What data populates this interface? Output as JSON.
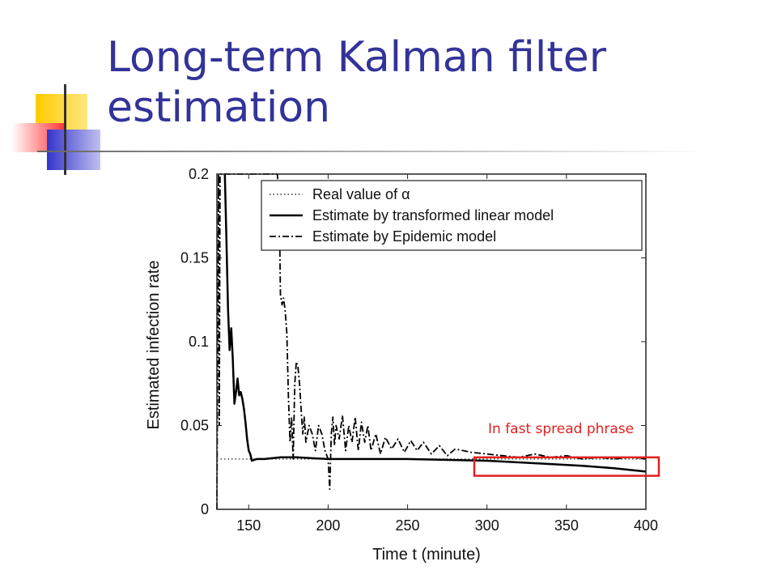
{
  "slide": {
    "title_line1": "Long-term Kalman filter",
    "title_line2": "estimation",
    "annotation": "In fast spread phrase"
  },
  "colors": {
    "title": "#333399",
    "annotation": "#e02020",
    "deco_yellow": "#ffcc00",
    "deco_blue": "#3333cc",
    "deco_red": "#ff3333"
  },
  "chart_data": {
    "type": "line",
    "xlabel": "Time t (minute)",
    "ylabel": "Estimated infection rate",
    "xlim": [
      130,
      400
    ],
    "ylim": [
      0,
      0.2
    ],
    "xticks": [
      150,
      200,
      250,
      300,
      350,
      400
    ],
    "xtick_labels": [
      "150",
      "200",
      "250",
      "300",
      "350",
      "400"
    ],
    "yticks": [
      0,
      0.05,
      0.1,
      0.15,
      0.2
    ],
    "ytick_labels": [
      "0",
      "0.05",
      "0.1",
      "0.15",
      "0.2"
    ],
    "grid": false,
    "legend_position": "top-right",
    "highlight_region": {
      "x": [
        292,
        400
      ],
      "y": [
        0.02,
        0.031
      ]
    },
    "series": [
      {
        "name": "Real value of α",
        "style": "dotted",
        "x": [
          130,
          400
        ],
        "y": [
          0.03,
          0.03
        ]
      },
      {
        "name": "Estimate by transformed linear model",
        "style": "solid",
        "x": [
          135,
          136,
          137,
          138,
          139,
          140,
          141,
          142,
          143,
          144,
          145,
          146,
          147,
          148,
          149,
          150,
          151,
          152,
          155,
          160,
          170,
          180,
          200,
          250,
          300,
          320,
          340,
          360,
          380,
          400
        ],
        "y": [
          0.2,
          0.16,
          0.12,
          0.095,
          0.108,
          0.09,
          0.063,
          0.07,
          0.078,
          0.068,
          0.07,
          0.066,
          0.06,
          0.052,
          0.042,
          0.035,
          0.033,
          0.029,
          0.03,
          0.03,
          0.031,
          0.031,
          0.03,
          0.03,
          0.029,
          0.028,
          0.027,
          0.026,
          0.0245,
          0.0225
        ]
      },
      {
        "name": "Estimate by Epidemic model",
        "style": "dashdot",
        "x": [
          130,
          131,
          131.5,
          132,
          133,
          135,
          140,
          150,
          160,
          165,
          168,
          169,
          169.5,
          170,
          171,
          172,
          173,
          174,
          175,
          176,
          177,
          178,
          179,
          180,
          181,
          182,
          183,
          184,
          185,
          186,
          188,
          190,
          192,
          194,
          196,
          198,
          200,
          201,
          202,
          203,
          204,
          205,
          207,
          209,
          211,
          213,
          215,
          217,
          219,
          221,
          223,
          225,
          227,
          230,
          233,
          236,
          240,
          244,
          248,
          252,
          256,
          260,
          265,
          270,
          275,
          280,
          290,
          300,
          310,
          320,
          330,
          340,
          350,
          360,
          370,
          380,
          390,
          400
        ],
        "y": [
          0.0,
          0.2,
          0.05,
          0.2,
          0.2,
          0.2,
          0.2,
          0.2,
          0.2,
          0.2,
          0.2,
          0.19,
          0.165,
          0.128,
          0.122,
          0.126,
          0.118,
          0.105,
          0.068,
          0.04,
          0.055,
          0.03,
          0.075,
          0.088,
          0.085,
          0.075,
          0.06,
          0.045,
          0.055,
          0.04,
          0.05,
          0.045,
          0.035,
          0.05,
          0.045,
          0.035,
          0.03,
          0.012,
          0.045,
          0.055,
          0.038,
          0.05,
          0.042,
          0.056,
          0.035,
          0.05,
          0.04,
          0.055,
          0.035,
          0.052,
          0.04,
          0.05,
          0.035,
          0.045,
          0.033,
          0.043,
          0.036,
          0.042,
          0.034,
          0.041,
          0.035,
          0.04,
          0.033,
          0.038,
          0.032,
          0.036,
          0.034,
          0.033,
          0.032,
          0.031,
          0.033,
          0.031,
          0.032,
          0.03,
          0.031,
          0.03,
          0.031,
          0.03
        ]
      }
    ]
  }
}
